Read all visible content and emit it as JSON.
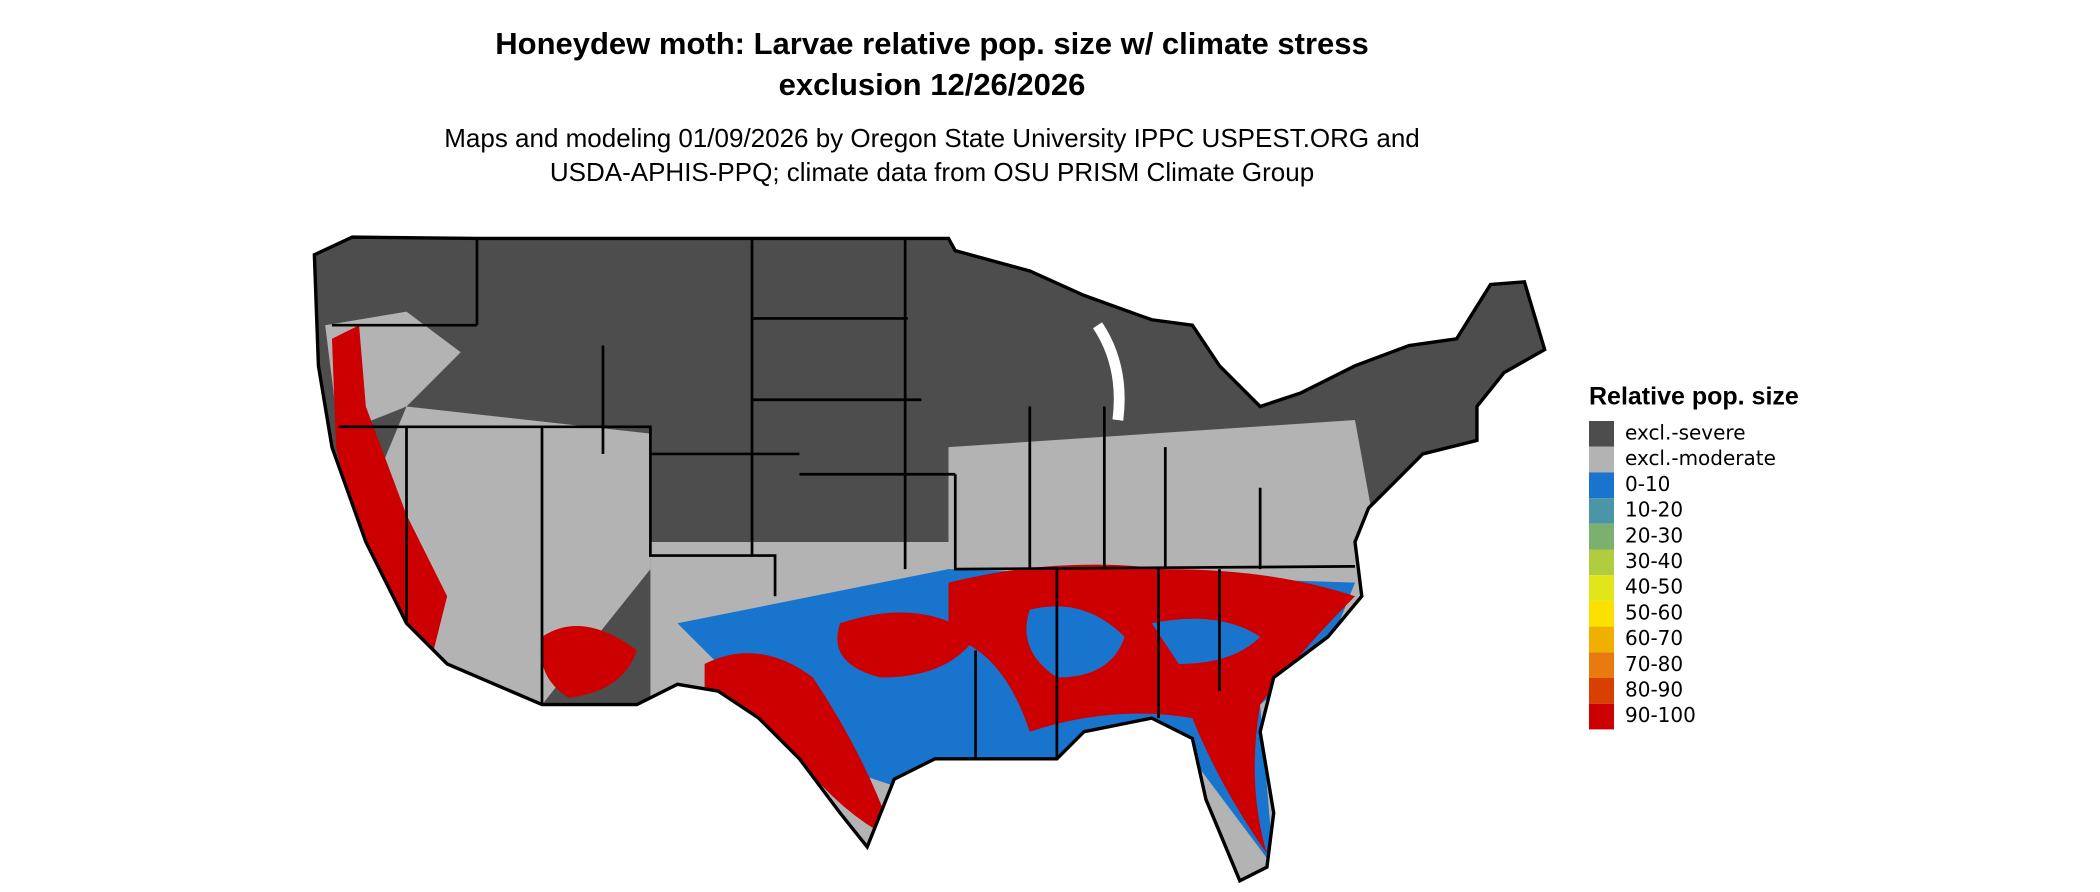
{
  "header": {
    "title": [
      "Honeydew moth: Larvae relative pop. size w/ climate stress",
      "exclusion 12/26/2026"
    ],
    "subtitle": [
      "Maps and modeling 01/09/2026 by Oregon State University IPPC USPEST.ORG and",
      "USDA-APHIS-PPQ; climate data from OSU PRISM Climate Group"
    ]
  },
  "legend": {
    "title": "Relative pop. size",
    "items": [
      {
        "label": "excl.-severe",
        "color": "#4d4d4d"
      },
      {
        "label": "excl.-moderate",
        "color": "#b3b3b3"
      },
      {
        "label": "0-10",
        "color": "#1874cd"
      },
      {
        "label": "10-20",
        "color": "#4a96a8"
      },
      {
        "label": "20-30",
        "color": "#7bb06e"
      },
      {
        "label": "30-40",
        "color": "#b0cc40"
      },
      {
        "label": "40-50",
        "color": "#e1e61a"
      },
      {
        "label": "50-60",
        "color": "#fbe100"
      },
      {
        "label": "60-70",
        "color": "#f0b000"
      },
      {
        "label": "70-80",
        "color": "#e87a10"
      },
      {
        "label": "80-90",
        "color": "#d84000"
      },
      {
        "label": "90-100",
        "color": "#cc0000"
      }
    ]
  }
}
